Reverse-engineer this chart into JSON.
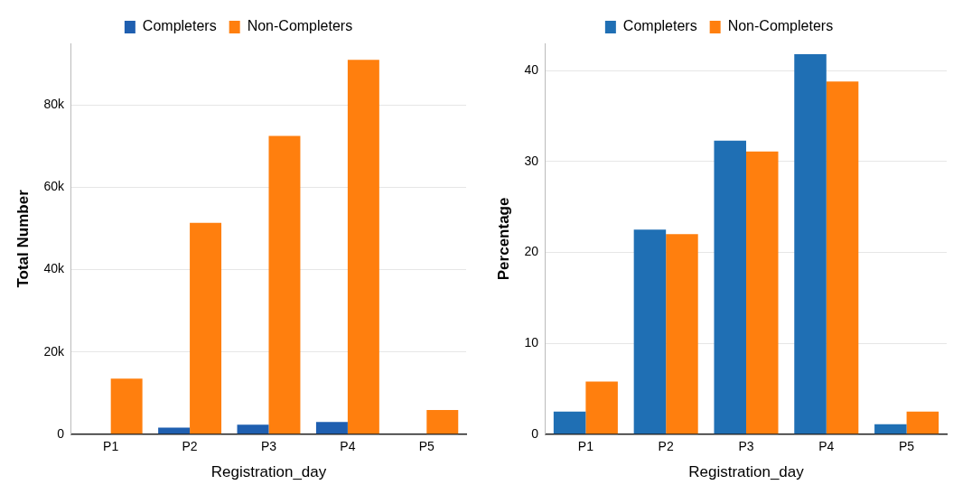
{
  "chart_data": [
    {
      "type": "bar",
      "categories": [
        "P1",
        "P2",
        "P3",
        "P4",
        "P5"
      ],
      "xlabel": "Registration_day",
      "ylabel": "Total Number",
      "ylim": [
        0,
        95000
      ],
      "yticks": [
        {
          "value": 0,
          "label": "0"
        },
        {
          "value": 20000,
          "label": "20k"
        },
        {
          "value": 40000,
          "label": "40k"
        },
        {
          "value": 60000,
          "label": "60k"
        },
        {
          "value": 80000,
          "label": "80k"
        }
      ],
      "grid": "y",
      "legend": "top",
      "series": [
        {
          "name": "Completers",
          "color": "#1f5fb0",
          "values": [
            100,
            1600,
            2300,
            3000,
            100
          ]
        },
        {
          "name": "Non-Completers",
          "color": "#ff7f0e",
          "values": [
            13500,
            51400,
            72500,
            91000,
            5900
          ]
        }
      ]
    },
    {
      "type": "bar",
      "categories": [
        "P1",
        "P2",
        "P3",
        "P4",
        "P5"
      ],
      "xlabel": "Registration_day",
      "ylabel": "Percentage",
      "ylim": [
        0,
        43
      ],
      "yticks": [
        0,
        10,
        20,
        30,
        40
      ],
      "grid": "y",
      "legend": "top",
      "series": [
        {
          "name": "Completers",
          "color": "#1f6fb4",
          "values": [
            2.5,
            22.5,
            32.3,
            41.8,
            1.1
          ]
        },
        {
          "name": "Non-Completers",
          "color": "#ff7f0e",
          "values": [
            5.8,
            22.0,
            31.1,
            38.8,
            2.5
          ]
        }
      ]
    }
  ]
}
